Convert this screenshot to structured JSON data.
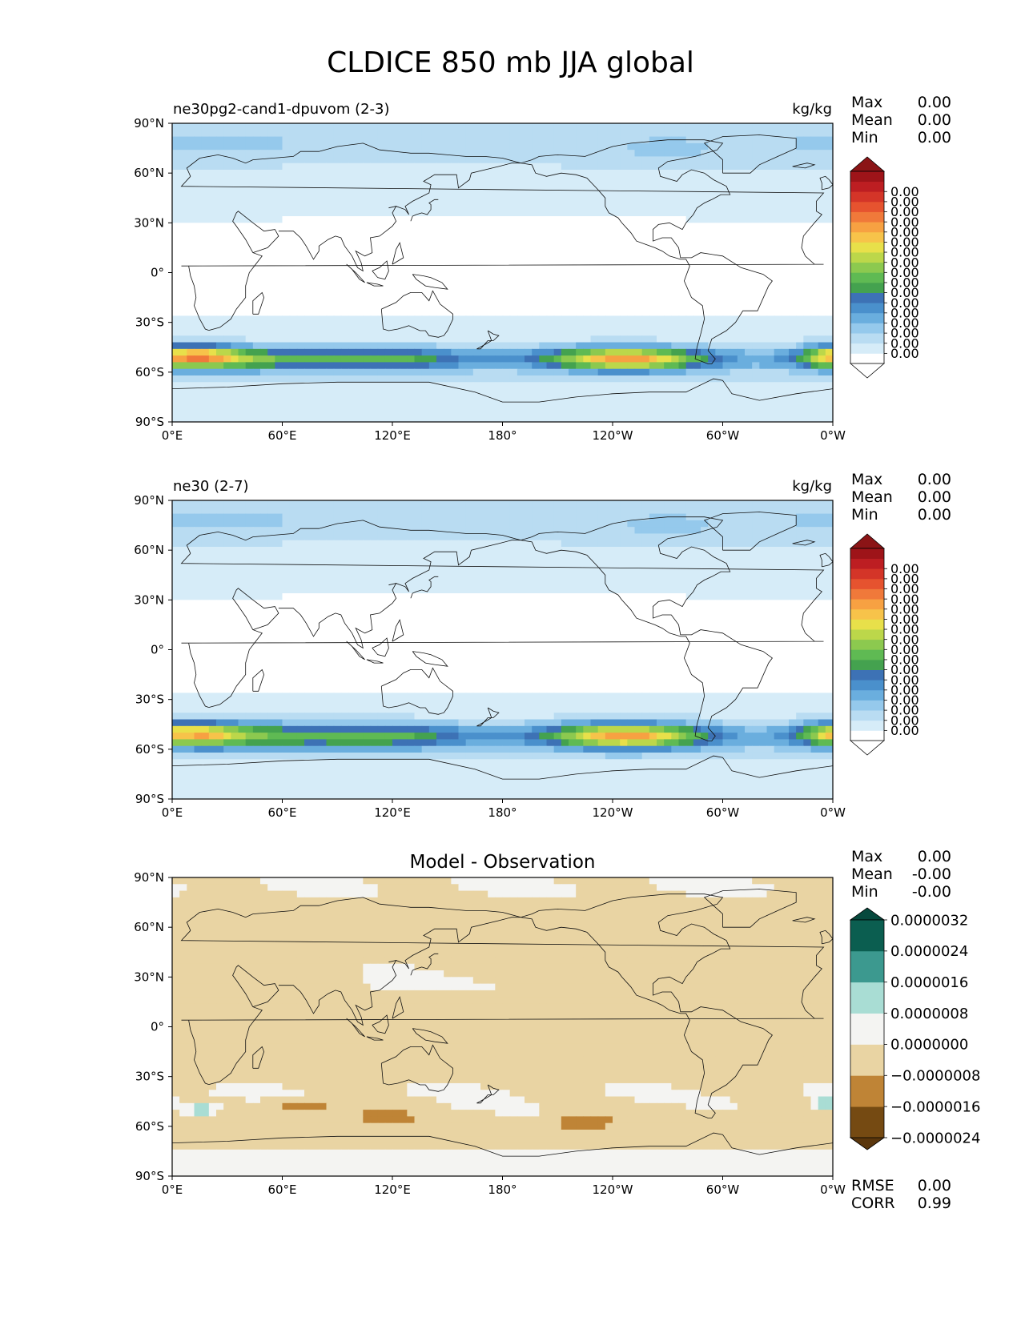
{
  "figure": {
    "title": "CLDICE 850 mb JJA global"
  },
  "chart_data": [
    {
      "type": "heatmap",
      "title_left": "ne30pg2-cand1-dpuvom (2-3)",
      "title_right": "kg/kg",
      "x_ticks": [
        "0°E",
        "60°E",
        "120°E",
        "180°",
        "120°W",
        "60°W",
        "0°W"
      ],
      "y_ticks": [
        "90°N",
        "60°N",
        "30°N",
        "0°",
        "30°S",
        "60°S",
        "90°S"
      ],
      "xlim": [
        0,
        360
      ],
      "ylim": [
        -90,
        90
      ],
      "stats": [
        {
          "label": "Max",
          "value": "0.00"
        },
        {
          "label": "Mean",
          "value": "0.00"
        },
        {
          "label": "Min",
          "value": "0.00"
        }
      ],
      "colorbar": {
        "extend": "both",
        "colors": [
          "#ffffff",
          "#d6ecf8",
          "#b9dcf2",
          "#95c9ec",
          "#6aaede",
          "#4a90cc",
          "#3d72b5",
          "#44a24f",
          "#5fba53",
          "#8cc94f",
          "#bcd74a",
          "#e8e04a",
          "#f7c34a",
          "#f7a142",
          "#f0793a",
          "#e6532f",
          "#d43528",
          "#bd1e22",
          "#9e1419"
        ],
        "over_color": "#8b1416",
        "under_color": "#ffffff",
        "tick_labels": [
          "0.00",
          "0.00",
          "0.00",
          "0.00",
          "0.00",
          "0.00",
          "0.00",
          "0.00",
          "0.00",
          "0.00",
          "0.00",
          "0.00",
          "0.00",
          "0.00",
          "0.00",
          "0.00",
          "0.00"
        ]
      }
    },
    {
      "type": "heatmap",
      "title_left": "ne30 (2-7)",
      "title_right": "kg/kg",
      "x_ticks": [
        "0°E",
        "60°E",
        "120°E",
        "180°",
        "120°W",
        "60°W",
        "0°W"
      ],
      "y_ticks": [
        "90°N",
        "60°N",
        "30°N",
        "0°",
        "30°S",
        "60°S",
        "90°S"
      ],
      "xlim": [
        0,
        360
      ],
      "ylim": [
        -90,
        90
      ],
      "stats": [
        {
          "label": "Max",
          "value": "0.00"
        },
        {
          "label": "Mean",
          "value": "0.00"
        },
        {
          "label": "Min",
          "value": "0.00"
        }
      ],
      "colorbar": {
        "extend": "both",
        "colors": [
          "#ffffff",
          "#d6ecf8",
          "#b9dcf2",
          "#95c9ec",
          "#6aaede",
          "#4a90cc",
          "#3d72b5",
          "#44a24f",
          "#5fba53",
          "#8cc94f",
          "#bcd74a",
          "#e8e04a",
          "#f7c34a",
          "#f7a142",
          "#f0793a",
          "#e6532f",
          "#d43528",
          "#bd1e22",
          "#9e1419"
        ],
        "over_color": "#8b1416",
        "under_color": "#ffffff",
        "tick_labels": [
          "0.00",
          "0.00",
          "0.00",
          "0.00",
          "0.00",
          "0.00",
          "0.00",
          "0.00",
          "0.00",
          "0.00",
          "0.00",
          "0.00",
          "0.00",
          "0.00",
          "0.00",
          "0.00",
          "0.00"
        ]
      }
    },
    {
      "type": "heatmap",
      "title_center": "Model - Observation",
      "x_ticks": [
        "0°E",
        "60°E",
        "120°E",
        "180°",
        "120°W",
        "60°W",
        "0°W"
      ],
      "y_ticks": [
        "90°N",
        "60°N",
        "30°N",
        "0°",
        "30°S",
        "60°S",
        "90°S"
      ],
      "xlim": [
        0,
        360
      ],
      "ylim": [
        -90,
        90
      ],
      "stats": [
        {
          "label": "Max",
          "value": "0.00"
        },
        {
          "label": "Mean",
          "value": "-0.00"
        },
        {
          "label": "Min",
          "value": "-0.00"
        }
      ],
      "bottom_stats": [
        {
          "label": "RMSE",
          "value": "0.00"
        },
        {
          "label": "CORR",
          "value": "0.99"
        }
      ],
      "colorbar": {
        "extend": "both",
        "colors": [
          "#754a12",
          "#bf8436",
          "#e9d4a3",
          "#f4f4f2",
          "#a9ddd4",
          "#3c998f",
          "#0b5e50"
        ],
        "over_color": "#06493d",
        "under_color": "#5a360c",
        "tick_labels": [
          "−0.0000024",
          "−0.0000016",
          "−0.0000008",
          "0.0000000",
          "0.0000008",
          "0.0000016",
          "0.0000024",
          "0.0000032"
        ]
      }
    }
  ]
}
